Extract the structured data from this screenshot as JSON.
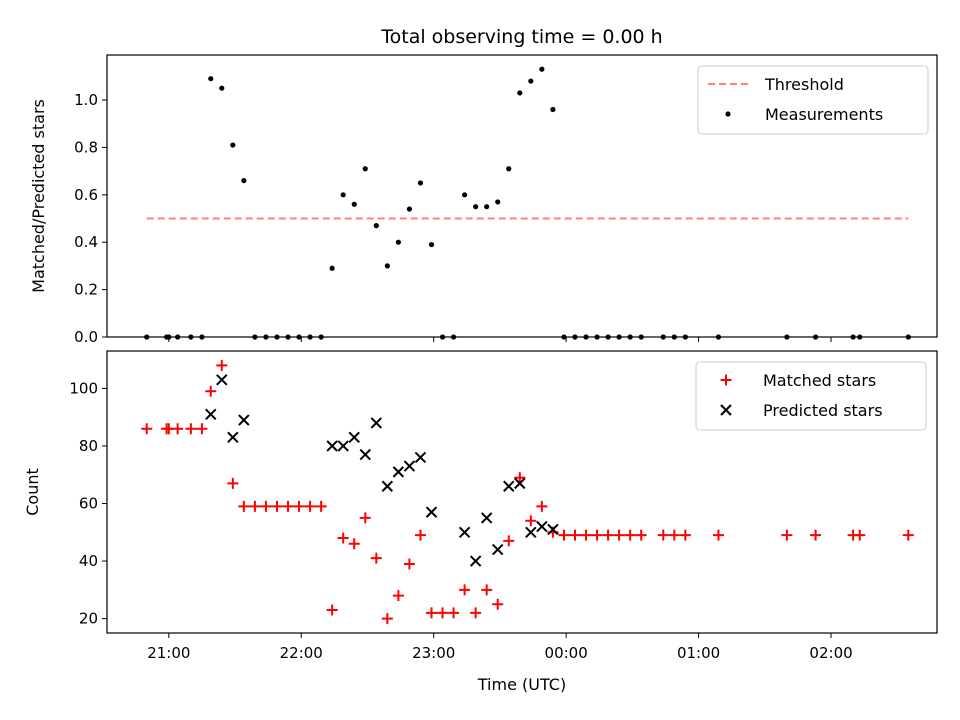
{
  "chart_data": [
    {
      "type": "scatter",
      "title": "Total observing time = 0.00 h",
      "xlabel": "",
      "ylabel": "Matched/Predicted stars",
      "xlim": [
        "20:32",
        "02:48"
      ],
      "ylim": [
        0,
        1.19
      ],
      "yticks": [
        "0.0",
        "0.2",
        "0.4",
        "0.6",
        "0.8",
        "1.0"
      ],
      "legend_position": "top-right",
      "threshold": {
        "name": "Threshold",
        "value": 0.5,
        "x_range": [
          "20:50",
          "02:35"
        ],
        "color": "#ff7f7f"
      },
      "series": [
        {
          "name": "Measurements",
          "color": "#000000",
          "points": [
            [
              "20:50",
              0.0
            ],
            [
              "20:59",
              0.0
            ],
            [
              "21:00",
              0.0
            ],
            [
              "21:04",
              0.0
            ],
            [
              "21:10",
              0.0
            ],
            [
              "21:15",
              0.0
            ],
            [
              "21:19",
              1.09
            ],
            [
              "21:24",
              1.05
            ],
            [
              "21:29",
              0.81
            ],
            [
              "21:34",
              0.66
            ],
            [
              "21:39",
              0.0
            ],
            [
              "21:44",
              0.0
            ],
            [
              "21:49",
              0.0
            ],
            [
              "21:54",
              0.0
            ],
            [
              "21:59",
              0.0
            ],
            [
              "22:04",
              0.0
            ],
            [
              "22:09",
              0.0
            ],
            [
              "22:14",
              0.29
            ],
            [
              "22:19",
              0.6
            ],
            [
              "22:24",
              0.56
            ],
            [
              "22:29",
              0.71
            ],
            [
              "22:34",
              0.47
            ],
            [
              "22:39",
              0.3
            ],
            [
              "22:44",
              0.4
            ],
            [
              "22:49",
              0.54
            ],
            [
              "22:54",
              0.65
            ],
            [
              "22:59",
              0.39
            ],
            [
              "23:04",
              0.0
            ],
            [
              "23:09",
              0.0
            ],
            [
              "23:14",
              0.6
            ],
            [
              "23:19",
              0.55
            ],
            [
              "23:24",
              0.55
            ],
            [
              "23:29",
              0.57
            ],
            [
              "23:34",
              0.71
            ],
            [
              "23:39",
              1.03
            ],
            [
              "23:44",
              1.08
            ],
            [
              "23:49",
              1.13
            ],
            [
              "23:54",
              0.96
            ],
            [
              "23:59",
              0.0
            ],
            [
              "00:04",
              0.0
            ],
            [
              "00:09",
              0.0
            ],
            [
              "00:14",
              0.0
            ],
            [
              "00:19",
              0.0
            ],
            [
              "00:24",
              0.0
            ],
            [
              "00:29",
              0.0
            ],
            [
              "00:34",
              0.0
            ],
            [
              "00:44",
              0.0
            ],
            [
              "00:49",
              0.0
            ],
            [
              "00:54",
              0.0
            ],
            [
              "01:09",
              0.0
            ],
            [
              "01:40",
              0.0
            ],
            [
              "01:53",
              0.0
            ],
            [
              "02:10",
              0.0
            ],
            [
              "02:13",
              0.0
            ],
            [
              "02:35",
              0.0
            ]
          ]
        }
      ]
    },
    {
      "type": "scatter",
      "title": "",
      "xlabel": "Time (UTC)",
      "ylabel": "Count",
      "xlim": [
        "20:32",
        "02:48"
      ],
      "ylim": [
        15,
        113
      ],
      "yticks": [
        "20",
        "40",
        "60",
        "80",
        "100"
      ],
      "xticks": [
        "21:00",
        "22:00",
        "23:00",
        "00:00",
        "01:00",
        "02:00"
      ],
      "legend_position": "top-right",
      "series": [
        {
          "name": "Matched stars",
          "color": "#ff0000",
          "marker": "plus",
          "points": [
            [
              "20:50",
              86
            ],
            [
              "20:59",
              86
            ],
            [
              "21:00",
              86
            ],
            [
              "21:04",
              86
            ],
            [
              "21:10",
              86
            ],
            [
              "21:15",
              86
            ],
            [
              "21:19",
              99
            ],
            [
              "21:24",
              108
            ],
            [
              "21:29",
              67
            ],
            [
              "21:34",
              59
            ],
            [
              "21:39",
              59
            ],
            [
              "21:44",
              59
            ],
            [
              "21:49",
              59
            ],
            [
              "21:54",
              59
            ],
            [
              "21:59",
              59
            ],
            [
              "22:04",
              59
            ],
            [
              "22:09",
              59
            ],
            [
              "22:14",
              23
            ],
            [
              "22:19",
              48
            ],
            [
              "22:24",
              46
            ],
            [
              "22:29",
              55
            ],
            [
              "22:34",
              41
            ],
            [
              "22:39",
              20
            ],
            [
              "22:44",
              28
            ],
            [
              "22:49",
              39
            ],
            [
              "22:54",
              49
            ],
            [
              "22:59",
              22
            ],
            [
              "23:04",
              22
            ],
            [
              "23:09",
              22
            ],
            [
              "23:14",
              30
            ],
            [
              "23:19",
              22
            ],
            [
              "23:24",
              30
            ],
            [
              "23:29",
              25
            ],
            [
              "23:34",
              47
            ],
            [
              "23:39",
              69
            ],
            [
              "23:44",
              54
            ],
            [
              "23:49",
              59
            ],
            [
              "23:54",
              50
            ],
            [
              "23:59",
              49
            ],
            [
              "00:04",
              49
            ],
            [
              "00:09",
              49
            ],
            [
              "00:14",
              49
            ],
            [
              "00:19",
              49
            ],
            [
              "00:24",
              49
            ],
            [
              "00:29",
              49
            ],
            [
              "00:34",
              49
            ],
            [
              "00:44",
              49
            ],
            [
              "00:49",
              49
            ],
            [
              "00:54",
              49
            ],
            [
              "01:09",
              49
            ],
            [
              "01:40",
              49
            ],
            [
              "01:53",
              49
            ],
            [
              "02:10",
              49
            ],
            [
              "02:13",
              49
            ],
            [
              "02:35",
              49
            ]
          ]
        },
        {
          "name": "Predicted stars",
          "color": "#000000",
          "marker": "x",
          "points": [
            [
              "21:19",
              91
            ],
            [
              "21:24",
              103
            ],
            [
              "21:29",
              83
            ],
            [
              "21:34",
              89
            ],
            [
              "22:14",
              80
            ],
            [
              "22:19",
              80
            ],
            [
              "22:24",
              83
            ],
            [
              "22:29",
              77
            ],
            [
              "22:34",
              88
            ],
            [
              "22:39",
              66
            ],
            [
              "22:44",
              71
            ],
            [
              "22:49",
              73
            ],
            [
              "22:54",
              76
            ],
            [
              "22:59",
              57
            ],
            [
              "23:14",
              50
            ],
            [
              "23:19",
              40
            ],
            [
              "23:24",
              55
            ],
            [
              "23:29",
              44
            ],
            [
              "23:34",
              66
            ],
            [
              "23:39",
              67
            ],
            [
              "23:44",
              50
            ],
            [
              "23:49",
              52
            ],
            [
              "23:54",
              51
            ]
          ]
        }
      ]
    }
  ]
}
